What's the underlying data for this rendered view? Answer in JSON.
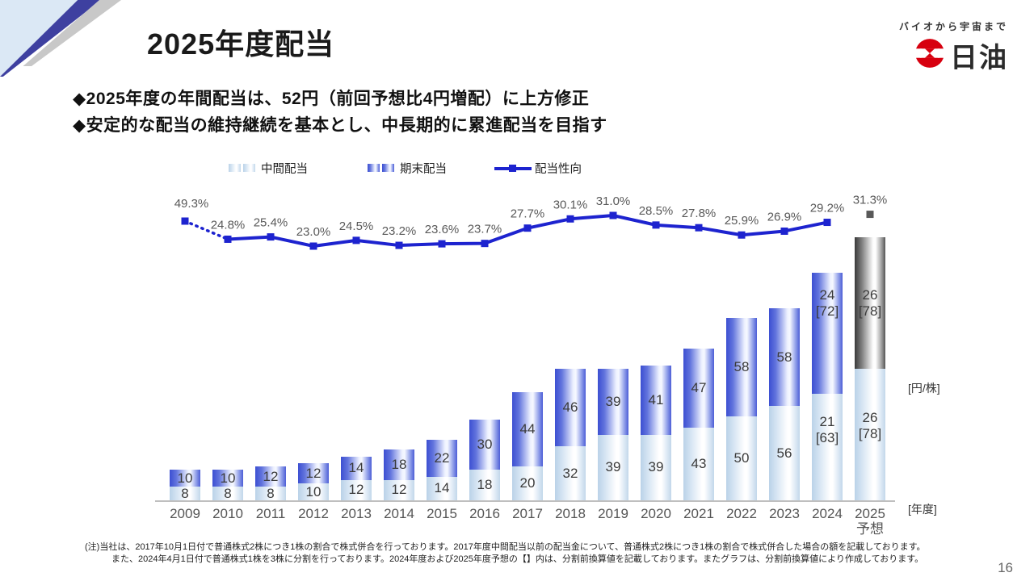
{
  "page": {
    "number": "16"
  },
  "header": {
    "title": "2025年度配当"
  },
  "logo": {
    "tagline": "バイオから宇宙まで",
    "company": "日油",
    "brand_red": "#d7000f"
  },
  "bullets": [
    "◆2025年度の年間配当は、52円（前回予想比4円増配）に上方修正",
    "◆安定的な配当の維持継続を基本とし、中長期的に累進配当を目指す"
  ],
  "chart_data": {
    "type": "bar",
    "subtype": "stacked-bar-with-line",
    "unit_label": "[円/株]",
    "axis_label": "[年度]",
    "forecast_sublabel": "予想",
    "legend": [
      {
        "label": "中間配当",
        "style": "interim"
      },
      {
        "label": "期末配当",
        "style": "final"
      },
      {
        "label": "配当性向",
        "style": "line"
      }
    ],
    "categories": [
      "2009",
      "2010",
      "2011",
      "2012",
      "2013",
      "2014",
      "2015",
      "2016",
      "2017",
      "2018",
      "2019",
      "2020",
      "2021",
      "2022",
      "2023",
      "2024",
      "2025"
    ],
    "forecast_index": 16,
    "series": [
      {
        "name": "中間配当",
        "labels": [
          [
            "8"
          ],
          [
            "8"
          ],
          [
            "8"
          ],
          [
            "10"
          ],
          [
            "12"
          ],
          [
            "12"
          ],
          [
            "14"
          ],
          [
            "18"
          ],
          [
            "20"
          ],
          [
            "32"
          ],
          [
            "39"
          ],
          [
            "39"
          ],
          [
            "43"
          ],
          [
            "50"
          ],
          [
            "56"
          ],
          [
            "21",
            "[63]"
          ],
          [
            "26",
            "[78]"
          ]
        ],
        "graph_values": [
          8,
          8,
          8,
          10,
          12,
          12,
          14,
          18,
          20,
          32,
          39,
          39,
          43,
          50,
          56,
          63,
          78
        ]
      },
      {
        "name": "期末配当",
        "labels": [
          [
            "10"
          ],
          [
            "10"
          ],
          [
            "12"
          ],
          [
            "12"
          ],
          [
            "14"
          ],
          [
            "18"
          ],
          [
            "22"
          ],
          [
            "30"
          ],
          [
            "44"
          ],
          [
            "46"
          ],
          [
            "39"
          ],
          [
            "41"
          ],
          [
            "47"
          ],
          [
            "58"
          ],
          [
            "58"
          ],
          [
            "24",
            "[72]"
          ],
          [
            "26",
            "[78]"
          ]
        ],
        "graph_values": [
          10,
          10,
          12,
          12,
          14,
          18,
          22,
          30,
          44,
          46,
          39,
          41,
          47,
          58,
          58,
          72,
          78
        ]
      }
    ],
    "line": {
      "name": "配当性向",
      "values_pct": [
        49.3,
        24.8,
        25.4,
        23.0,
        24.5,
        23.2,
        23.6,
        23.7,
        27.7,
        30.1,
        31.0,
        28.5,
        27.8,
        25.9,
        26.9,
        29.2,
        31.3
      ],
      "labels": [
        "49.3%",
        "24.8%",
        "25.4%",
        "23.0%",
        "24.5%",
        "23.2%",
        "23.6%",
        "23.7%",
        "27.7%",
        "30.1%",
        "31.0%",
        "28.5%",
        "27.8%",
        "25.9%",
        "26.9%",
        "29.2%",
        "31.3%"
      ],
      "first_point_compressed": true,
      "last_point_isolated_forecast": true
    },
    "colors": {
      "line_blue": "#1d23cf",
      "final_bar_edge": "#4156d4",
      "interim_bar_edge": "#c9dcee",
      "forecast_bar_edge": "#4a4a4a",
      "pct_label_gray": "#595959",
      "forecast_marker_gray": "#595959"
    }
  },
  "footnote": {
    "line1": "(注)当社は、2017年10月1日付で普通株式2株につき1株の割合で株式併合を行っております。2017年度中間配当以前の配当金について、普通株式2株につき1株の割合で株式併合した場合の額を記載しております。",
    "line2": "また、2024年4月1日付で普通株式1株を3株に分割を行っております。2024年度および2025年度予想の【】内は、分割前換算値を記載しております。またグラフは、分割前換算値により作成しております。"
  }
}
